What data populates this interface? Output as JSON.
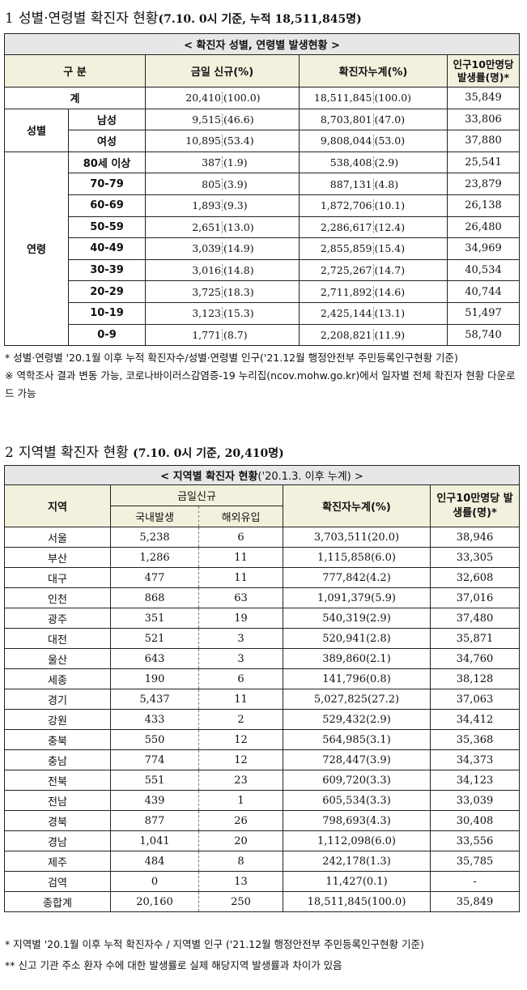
{
  "section1": {
    "number": "1",
    "title": "성별·연령별 확진자 현황",
    "subtitle": "(7.10. 0시 기준, 누적 18,511,845명)",
    "caption": "< 확진자 성별, 연령별 발생현황 >",
    "headers": {
      "category": "구 분",
      "new": "금일 신규(%)",
      "cumulative": "확진자누계(%)",
      "rate": "인구10만명당 발생률(명)*"
    },
    "total_row": {
      "label": "계",
      "new_n": "20,410",
      "new_p": "(100.0)",
      "cum_n": "18,511,845",
      "cum_p": "(100.0)",
      "rate": "35,849"
    },
    "sex_label": "성별",
    "sex_rows": [
      {
        "label": "남성",
        "new_n": "9,515",
        "new_p": "(46.6)",
        "cum_n": "8,703,801",
        "cum_p": "(47.0)",
        "rate": "33,806"
      },
      {
        "label": "여성",
        "new_n": "10,895",
        "new_p": "(53.4)",
        "cum_n": "9,808,044",
        "cum_p": "(53.0)",
        "rate": "37,880"
      }
    ],
    "age_label": "연령",
    "age_rows": [
      {
        "label": "80세 이상",
        "new_n": "387",
        "new_p": "(1.9)",
        "cum_n": "538,408",
        "cum_p": "(2.9)",
        "rate": "25,541"
      },
      {
        "label": "70-79",
        "new_n": "805",
        "new_p": "(3.9)",
        "cum_n": "887,131",
        "cum_p": "(4.8)",
        "rate": "23,879"
      },
      {
        "label": "60-69",
        "new_n": "1,893",
        "new_p": "(9.3)",
        "cum_n": "1,872,706",
        "cum_p": "(10.1)",
        "rate": "26,138"
      },
      {
        "label": "50-59",
        "new_n": "2,651",
        "new_p": "(13.0)",
        "cum_n": "2,286,617",
        "cum_p": "(12.4)",
        "rate": "26,480"
      },
      {
        "label": "40-49",
        "new_n": "3,039",
        "new_p": "(14.9)",
        "cum_n": "2,855,859",
        "cum_p": "(15.4)",
        "rate": "34,969"
      },
      {
        "label": "30-39",
        "new_n": "3,016",
        "new_p": "(14.8)",
        "cum_n": "2,725,267",
        "cum_p": "(14.7)",
        "rate": "40,534"
      },
      {
        "label": "20-29",
        "new_n": "3,725",
        "new_p": "(18.3)",
        "cum_n": "2,711,892",
        "cum_p": "(14.6)",
        "rate": "40,744"
      },
      {
        "label": "10-19",
        "new_n": "3,123",
        "new_p": "(15.3)",
        "cum_n": "2,425,144",
        "cum_p": "(13.1)",
        "rate": "51,497"
      },
      {
        "label": "0-9",
        "new_n": "1,771",
        "new_p": "(8.7)",
        "cum_n": "2,208,821",
        "cum_p": "(11.9)",
        "rate": "58,740"
      }
    ],
    "notes": [
      "* 성별·연령별 '20.1월 이후 누적 확진자수/성별·연령별 인구('21.12월 행정안전부 주민등록인구현황 기준)",
      "※ 역학조사 결과 변동 가능, 코로나바이러스감염증-19 누리집(ncov.mohw.go.kr)에서 일자별 전체 확진자 현황 다운로드 가능"
    ]
  },
  "section2": {
    "number": "2",
    "title": "지역별 확진자 현황",
    "subtitle": "(7.10. 0시 기준, 20,410명)",
    "caption_a": "< 지역별 확진자 현황",
    "caption_b": "('20.1.3. 이후 누계) >",
    "headers": {
      "region": "지역",
      "today": "금일신규",
      "domestic": "국내발생",
      "overseas": "해외유입",
      "cumulative": "확진자누계(%)",
      "rate": "인구10만명당 발생률(명)*"
    },
    "rows": [
      {
        "region": "서울",
        "domestic": "5,238",
        "overseas": "6",
        "cumulative": "3,703,511(20.0)",
        "rate": "38,946"
      },
      {
        "region": "부산",
        "domestic": "1,286",
        "overseas": "11",
        "cumulative": "1,115,858(6.0)",
        "rate": "33,305"
      },
      {
        "region": "대구",
        "domestic": "477",
        "overseas": "11",
        "cumulative": "777,842(4.2)",
        "rate": "32,608"
      },
      {
        "region": "인천",
        "domestic": "868",
        "overseas": "63",
        "cumulative": "1,091,379(5.9)",
        "rate": "37,016"
      },
      {
        "region": "광주",
        "domestic": "351",
        "overseas": "19",
        "cumulative": "540,319(2.9)",
        "rate": "37,480"
      },
      {
        "region": "대전",
        "domestic": "521",
        "overseas": "3",
        "cumulative": "520,941(2.8)",
        "rate": "35,871"
      },
      {
        "region": "울산",
        "domestic": "643",
        "overseas": "3",
        "cumulative": "389,860(2.1)",
        "rate": "34,760"
      },
      {
        "region": "세종",
        "domestic": "190",
        "overseas": "6",
        "cumulative": "141,796(0.8)",
        "rate": "38,128"
      },
      {
        "region": "경기",
        "domestic": "5,437",
        "overseas": "11",
        "cumulative": "5,027,825(27.2)",
        "rate": "37,063"
      },
      {
        "region": "강원",
        "domestic": "433",
        "overseas": "2",
        "cumulative": "529,432(2.9)",
        "rate": "34,412"
      },
      {
        "region": "충북",
        "domestic": "550",
        "overseas": "12",
        "cumulative": "564,985(3.1)",
        "rate": "35,368"
      },
      {
        "region": "충남",
        "domestic": "774",
        "overseas": "12",
        "cumulative": "728,447(3.9)",
        "rate": "34,373"
      },
      {
        "region": "전북",
        "domestic": "551",
        "overseas": "23",
        "cumulative": "609,720(3.3)",
        "rate": "34,123"
      },
      {
        "region": "전남",
        "domestic": "439",
        "overseas": "1",
        "cumulative": "605,534(3.3)",
        "rate": "33,039"
      },
      {
        "region": "경북",
        "domestic": "877",
        "overseas": "26",
        "cumulative": "798,693(4.3)",
        "rate": "30,408"
      },
      {
        "region": "경남",
        "domestic": "1,041",
        "overseas": "20",
        "cumulative": "1,112,098(6.0)",
        "rate": "33,556"
      },
      {
        "region": "제주",
        "domestic": "484",
        "overseas": "8",
        "cumulative": "242,178(1.3)",
        "rate": "35,785"
      },
      {
        "region": "검역",
        "domestic": "0",
        "overseas": "13",
        "cumulative": "11,427(0.1)",
        "rate": "-"
      },
      {
        "region": "종합계",
        "domestic": "20,160",
        "overseas": "250",
        "cumulative": "18,511,845(100.0)",
        "rate": "35,849"
      }
    ],
    "notes": [
      "* 지역별 '20.1월 이후 누적 확진자수 / 지역별 인구 ('21.12월 행정안전부 주민등록인구현황 기준)",
      "** 신고 기관 주소 환자 수에 대한 발생률로 실제 해당지역 발생률과 차이가 있음"
    ]
  }
}
